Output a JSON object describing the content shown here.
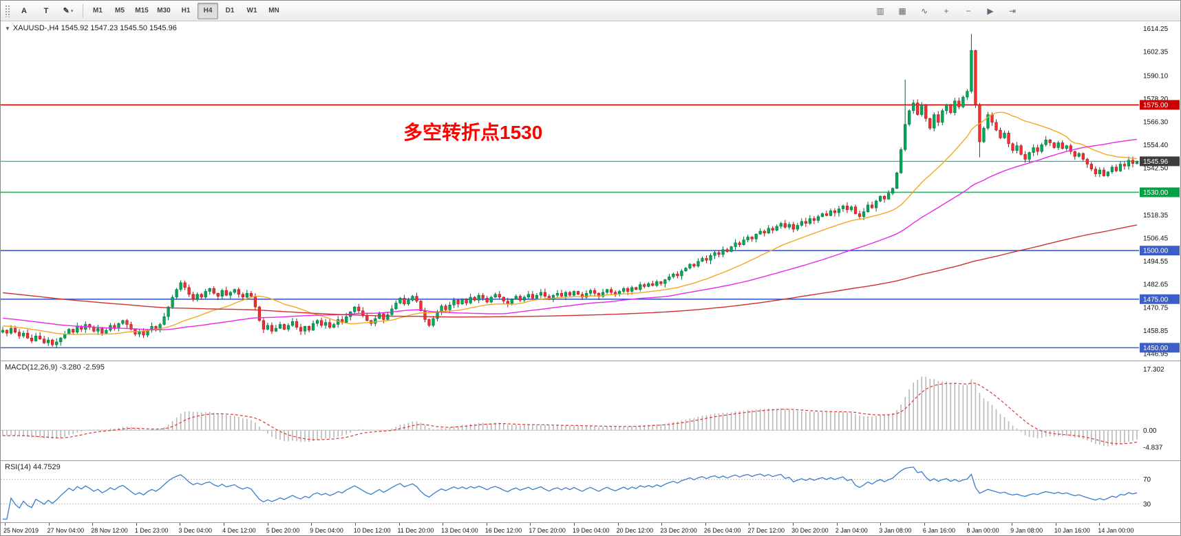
{
  "toolbar": {
    "left_buttons": [
      {
        "name": "insert-text-label-button",
        "glyph": "A"
      },
      {
        "name": "insert-text-button",
        "glyph": "T"
      },
      {
        "name": "draw-tools-button",
        "glyph": "✎",
        "caret": "▾"
      }
    ],
    "timeframes": [
      "M1",
      "M5",
      "M15",
      "M30",
      "H1",
      "H4",
      "D1",
      "W1",
      "MN"
    ],
    "active_timeframe": "H4",
    "right_buttons": [
      {
        "name": "chart-bar-type-button",
        "glyph": "▥"
      },
      {
        "name": "chart-candle-type-button",
        "glyph": "▦"
      },
      {
        "name": "chart-line-type-button",
        "glyph": "∿"
      },
      {
        "name": "zoom-in-button",
        "glyph": "+"
      },
      {
        "name": "zoom-out-button",
        "glyph": "−"
      },
      {
        "name": "auto-scroll-button",
        "glyph": "▶"
      },
      {
        "name": "chart-shift-button",
        "glyph": "⇥"
      }
    ]
  },
  "chart_data": {
    "type": "candlestick",
    "symbol": "XAUUSD-",
    "timeframe": "H4",
    "symbol_line": "XAUUSD-,H4  1545.92 1547.23 1545.50 1545.96",
    "ohlc_current": {
      "open": 1545.92,
      "high": 1547.23,
      "low": 1545.5,
      "close": 1545.96
    },
    "annotation_text": "多空转折点1530",
    "annotation_color": "#fe0000",
    "y_range": {
      "min": 1443.4,
      "max": 1618.0
    },
    "y_ticks": [
      "1614.25",
      "1602.35",
      "1590.10",
      "1578.20",
      "1566.30",
      "1554.40",
      "1542.50",
      "1518.35",
      "1506.45",
      "1494.55",
      "1482.65",
      "1470.75",
      "1458.85",
      "1446.95"
    ],
    "levels": [
      {
        "price": 1575.0,
        "label": "1575.00",
        "color": "#dd0000",
        "badge_color": "#cc0000",
        "width": 1.6
      },
      {
        "price": 1545.96,
        "label": "1545.96",
        "color": "#4d7f7f",
        "badge_color": "#3d3d3d",
        "width": 1
      },
      {
        "price": 1530.0,
        "label": "1530.00",
        "color": "#00c853",
        "badge_color": "#00a344",
        "width": 1.6
      },
      {
        "price": 1500.0,
        "label": "1500.00",
        "color": "#3a5fc8",
        "badge_color": "#3a5fc8",
        "width": 1.6
      },
      {
        "price": 1475.0,
        "label": "1475.00",
        "color": "#3a5fc8",
        "badge_color": "#3a5fc8",
        "width": 1.6
      },
      {
        "price": 1450.0,
        "label": "1450.00",
        "color": "#3a5fc8",
        "badge_color": "#3a5fc8",
        "width": 1.6
      }
    ],
    "moving_averages": [
      {
        "name": "fast",
        "period": 24,
        "color": "#f5a623"
      },
      {
        "name": "medium",
        "period": 60,
        "color": "#e928e9"
      },
      {
        "name": "slow",
        "period": 180,
        "color": "#d03030"
      }
    ],
    "candle_colors": {
      "up_fill": "#00a85a",
      "up_stroke": "#006837",
      "down_fill": "#f03030",
      "down_stroke": "#a01010"
    },
    "first_open": 1458.0,
    "closes": [
      1459,
      1457.5,
      1460,
      1458,
      1456,
      1457.5,
      1455,
      1453.5,
      1456,
      1454.5,
      1452.5,
      1454,
      1451.5,
      1453,
      1455,
      1457,
      1459.5,
      1458,
      1461,
      1459.5,
      1462,
      1460.5,
      1458.5,
      1460,
      1457.5,
      1459,
      1461.5,
      1460,
      1462.5,
      1464,
      1462,
      1459.5,
      1457,
      1458.5,
      1456.5,
      1459,
      1461,
      1459.5,
      1462,
      1466,
      1471,
      1476,
      1480,
      1483.5,
      1481,
      1477.5,
      1475,
      1477.5,
      1476,
      1479,
      1480.5,
      1478,
      1476.5,
      1479.5,
      1477,
      1478.5,
      1480,
      1477.5,
      1476,
      1478,
      1476.5,
      1471,
      1464,
      1459.5,
      1461.5,
      1458.5,
      1460,
      1462,
      1459.5,
      1461.5,
      1463.5,
      1460.5,
      1458.5,
      1461,
      1459,
      1462.5,
      1464,
      1461.5,
      1463,
      1460.5,
      1462,
      1464.5,
      1463,
      1466,
      1468.5,
      1471,
      1469,
      1466.5,
      1464,
      1462.5,
      1465,
      1467.5,
      1464.5,
      1467,
      1470,
      1473,
      1475.5,
      1472.5,
      1474.5,
      1476.5,
      1474,
      1469,
      1464.5,
      1461.5,
      1465,
      1468.5,
      1471.5,
      1469.5,
      1472,
      1474.5,
      1472.5,
      1475,
      1473,
      1476,
      1474.5,
      1477,
      1475.5,
      1473.5,
      1476,
      1477.5,
      1476,
      1474,
      1472.5,
      1475,
      1476.5,
      1474.5,
      1476,
      1477.5,
      1475.5,
      1477,
      1478.5,
      1476.5,
      1475,
      1477,
      1478,
      1476.5,
      1478.5,
      1477,
      1479,
      1477.5,
      1476,
      1478,
      1479.5,
      1478,
      1476.5,
      1478.5,
      1480,
      1478.5,
      1477.5,
      1479,
      1480.5,
      1479,
      1481,
      1480,
      1482.5,
      1481.5,
      1483,
      1482,
      1484,
      1483,
      1485,
      1486.5,
      1488,
      1487,
      1489.5,
      1491,
      1493,
      1492,
      1494.5,
      1496,
      1495,
      1497.5,
      1499,
      1498,
      1500.5,
      1499.5,
      1502,
      1504,
      1503,
      1505.5,
      1507,
      1506,
      1508.5,
      1510,
      1509,
      1511.5,
      1510.5,
      1512.5,
      1514,
      1512,
      1513.5,
      1511,
      1513,
      1515,
      1514,
      1516.5,
      1515.5,
      1517.5,
      1519,
      1518,
      1520.5,
      1519.5,
      1521.5,
      1523,
      1521,
      1522.5,
      1519,
      1517.5,
      1520,
      1523.5,
      1522,
      1525.5,
      1528,
      1526.5,
      1529.5,
      1532,
      1540,
      1552,
      1565,
      1572,
      1576,
      1570,
      1575,
      1568,
      1563,
      1570,
      1566,
      1572,
      1575,
      1571,
      1577,
      1574,
      1579,
      1582,
      1603,
      1575,
      1556,
      1563,
      1570,
      1566,
      1562,
      1558,
      1560.5,
      1555,
      1551.5,
      1554,
      1549.5,
      1547,
      1550.5,
      1553,
      1551,
      1554.5,
      1557,
      1555.5,
      1553,
      1555.5,
      1552.5,
      1554,
      1551,
      1548.5,
      1550,
      1547,
      1544.5,
      1542,
      1539.5,
      1541.5,
      1538.5,
      1540.5,
      1543,
      1541,
      1544.5,
      1543.5,
      1546.5,
      1544.8,
      1545.96
    ],
    "wick_overrides": {
      "12": {
        "low": 1450.5
      },
      "218": {
        "high": 1588.0
      },
      "234": {
        "high": 1611.5
      },
      "236": {
        "low": 1548.0
      }
    },
    "time_labels": [
      "25 Nov 2019",
      "27 Nov 04:00",
      "28 Nov 12:00",
      "1 Dec 23:00",
      "3 Dec 04:00",
      "4 Dec 12:00",
      "5 Dec 20:00",
      "9 Dec 04:00",
      "10 Dec 12:00",
      "11 Dec 20:00",
      "13 Dec 04:00",
      "16 Dec 12:00",
      "17 Dec 20:00",
      "19 Dec 04:00",
      "20 Dec 12:00",
      "23 Dec 20:00",
      "26 Dec 04:00",
      "27 Dec 12:00",
      "30 Dec 20:00",
      "2 Jan 04:00",
      "3 Jan 08:00",
      "6 Jan 16:00",
      "8 Jan 00:00",
      "9 Jan 08:00",
      "10 Jan 16:00",
      "14 Jan 00:00"
    ],
    "indicators": {
      "macd": {
        "label": "MACD(12,26,9) -3.280 -2.595",
        "params": [
          12,
          26,
          9
        ],
        "current_values": [
          -3.28,
          -2.595
        ],
        "scale": [
          "17.302",
          "0.00",
          "-4.837"
        ],
        "range": {
          "min": -8.5,
          "max": 19.5
        },
        "histogram_color": "#b9b9b9",
        "signal_color": "#e03434"
      },
      "rsi": {
        "label": "RSI(14) 44.7529",
        "period": 14,
        "current_value": 44.7529,
        "levels": [
          70,
          30
        ],
        "level_labels": [
          "70",
          "30"
        ],
        "line_color": "#3a7ccc",
        "range": {
          "min": 0,
          "max": 100
        }
      }
    }
  }
}
